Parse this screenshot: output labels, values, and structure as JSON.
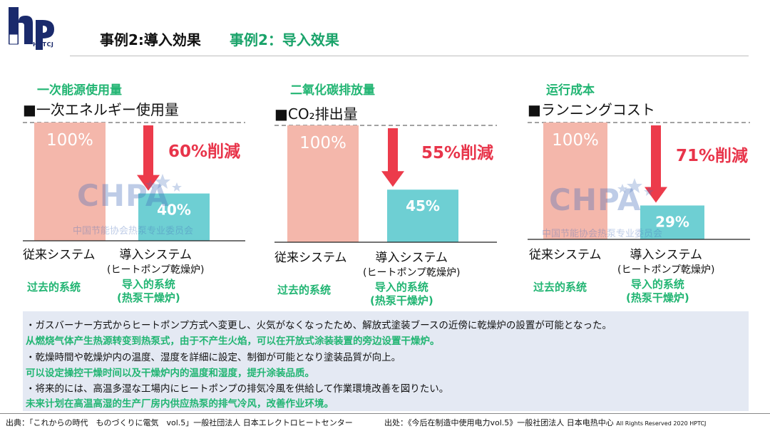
{
  "header": {
    "logo_text": "HPTCJ",
    "title_jp": "事例2:導入効果",
    "title_cn": "事例2：导入效果"
  },
  "watermark": {
    "text": "CHPA",
    "sub": "中国节能协会热泵专业委员会"
  },
  "colors": {
    "bar_old": "#f4b7ab",
    "bar_new": "#6ecfd3",
    "arrow": "#ec3b4b",
    "reduction_text": "#e8344a",
    "accent_cn": "#22b573"
  },
  "labels": {
    "old_jp": "従来システム",
    "new_jp": "導入システム",
    "new_jp_sub": "(ヒートポンプ乾燥炉)",
    "old_cn": "过去的系统",
    "new_cn": "导入的系统",
    "new_cn_sub": "(热泵干燥炉)"
  },
  "chart_data": [
    {
      "type": "bar",
      "title": "■一次エネルギー使用量",
      "subtitle": "一次能源使用量",
      "categories": [
        "従来システム",
        "導入システム"
      ],
      "values": [
        100,
        40
      ],
      "value_labels": [
        "100%",
        "40%"
      ],
      "reduction_label": "60%削減",
      "ylim": [
        0,
        100
      ]
    },
    {
      "type": "bar",
      "title": "■CO₂排出量",
      "subtitle": "二氧化碳排放量",
      "categories": [
        "従来システム",
        "導入システム"
      ],
      "values": [
        100,
        45
      ],
      "value_labels": [
        "100%",
        "45%"
      ],
      "reduction_label": "55%削減",
      "ylim": [
        0,
        100
      ]
    },
    {
      "type": "bar",
      "title": "■ランニングコスト",
      "subtitle": "运行成本",
      "categories": [
        "従来システム",
        "導入システム"
      ],
      "values": [
        100,
        29
      ],
      "value_labels": [
        "100%",
        "29%"
      ],
      "reduction_label": "71%削減",
      "ylim": [
        0,
        100
      ]
    }
  ],
  "notes": [
    {
      "jp": "・ガスバーナー方式からヒートポンプ方式へ変更し、火気がなくなったため、解放式塗装ブースの近傍に乾燥炉の設置が可能となった。",
      "cn": "从燃烧气体产生热源转变到热泵式，由于不产生火焰，可以在开放式涂装装置的旁边设置干燥炉。"
    },
    {
      "jp": "・乾燥時間や乾燥炉内の温度、湿度を詳細に設定、制御が可能となり塗装品質が向上。",
      "cn": "可以设定操控干燥时间以及干燥炉内的温度和湿度，提升涂装品质。"
    },
    {
      "jp": "・将来的には、高温多湿な工場内にヒートポンプの排気冷風を供給して作業環境改善を図りたい。",
      "cn": "未来计划在高温高湿的生产厂房内供应热泵的排气冷风，改善作业环境。"
    }
  ],
  "footer": {
    "left": "出典：「これからの時代　ものづくりに電気　vol.5」一般社団法人  日本エレクトロヒートセンター",
    "right": "出处：《今后在制造中使用电力vol.5》一般社团法人  日本电热中心",
    "rights": "All Rights Reserved  2020  HPTCJ"
  }
}
